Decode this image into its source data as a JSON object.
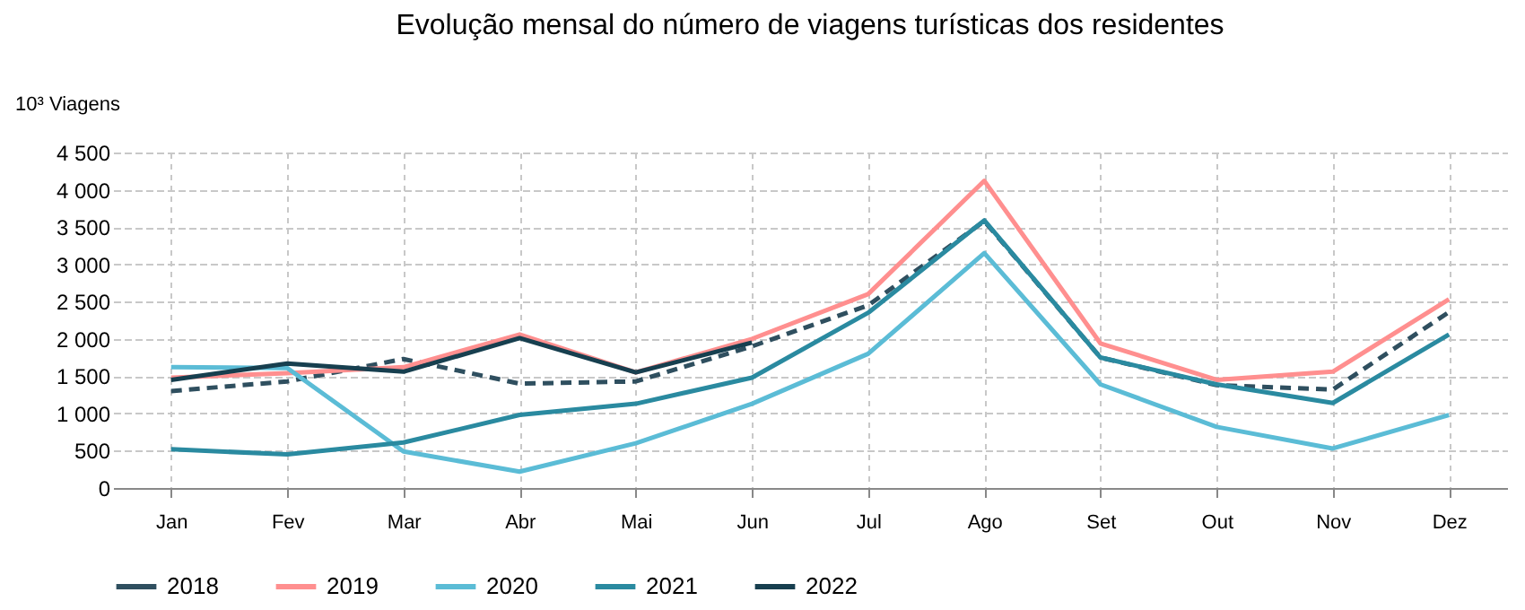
{
  "chart_data": {
    "type": "line",
    "title": "Evolução mensal do número de viagens turísticas dos residentes",
    "ylabel": "10³ Viagens",
    "categories": [
      "Jan",
      "Fev",
      "Mar",
      "Abr",
      "Mai",
      "Jun",
      "Jul",
      "Ago",
      "Set",
      "Out",
      "Nov",
      "Dez"
    ],
    "series": [
      {
        "name": "2018",
        "color": "#2f4f5f",
        "line_style": "dashed",
        "values": [
          1300,
          1430,
          1730,
          1400,
          1430,
          1900,
          2450,
          3580,
          1750,
          1380,
          1320,
          2360
        ]
      },
      {
        "name": "2019",
        "color": "#ff8f8f",
        "line_style": "solid",
        "values": [
          1480,
          1540,
          1620,
          2060,
          1550,
          2000,
          2600,
          4120,
          1940,
          1450,
          1560,
          2530
        ]
      },
      {
        "name": "2020",
        "color": "#5bbcd6",
        "line_style": "solid",
        "values": [
          1620,
          1610,
          490,
          220,
          600,
          1130,
          1800,
          3150,
          1390,
          820,
          530,
          980
        ]
      },
      {
        "name": "2021",
        "color": "#2a8aa0",
        "line_style": "solid",
        "values": [
          520,
          450,
          610,
          980,
          1130,
          1480,
          2350,
          3590,
          1750,
          1390,
          1140,
          2060
        ]
      },
      {
        "name": "2022",
        "color": "#173f4f",
        "line_style": "solid",
        "values": [
          1450,
          1670,
          1560,
          2010,
          1550,
          1950,
          null,
          null,
          null,
          null,
          null,
          null
        ]
      }
    ],
    "ylim": [
      0,
      4500
    ],
    "yticks": [
      0,
      500,
      {
        "value": 1000,
        "label": "1 000"
      },
      {
        "value": 1500,
        "label": "1 500"
      },
      {
        "value": 2000,
        "label": "2 000"
      },
      {
        "value": 2500,
        "label": "2 500"
      },
      {
        "value": 3000,
        "label": "3 000"
      },
      {
        "value": 3500,
        "label": "3 500"
      },
      {
        "value": 4000,
        "label": "4 000"
      },
      {
        "value": 4500,
        "label": "4 500"
      }
    ],
    "grid": true,
    "legend": "bottom",
    "marker": "none"
  }
}
